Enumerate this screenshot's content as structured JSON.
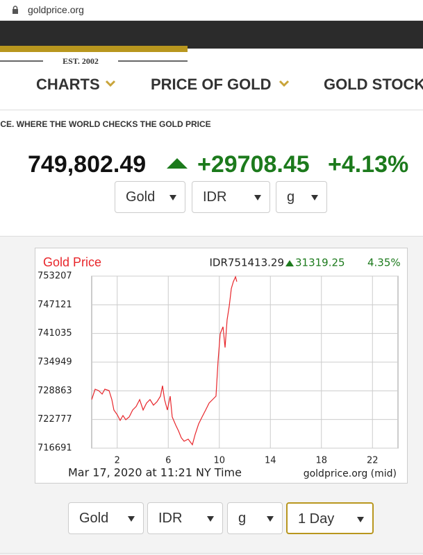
{
  "browser": {
    "url": "goldprice.org"
  },
  "logo": {
    "established": "EST. 2002"
  },
  "nav": [
    "CHARTS",
    "PRICE OF GOLD",
    "GOLD STOCK"
  ],
  "tagline": "ICE.  WHERE THE WORLD CHECKS THE GOLD PRICE",
  "ticker": {
    "price": "749,802.49",
    "change": "+29708.45",
    "change_pct": "+4.13%"
  },
  "top_selects": [
    "Gold",
    "IDR",
    "g"
  ],
  "bottom_selects": [
    "Gold",
    "IDR",
    "g",
    "1 Day"
  ],
  "chart_data": {
    "type": "line",
    "title": "Gold Price",
    "price": "IDR751413.29",
    "change": "31319.25",
    "change_pct": "4.35%",
    "unit": "g",
    "footer_left": "Mar 17, 2020 at 11:21 NY Time",
    "footer_right": "goldprice.org (mid)",
    "color": "#e8262b",
    "grid": true,
    "x": [
      0.0,
      0.27,
      0.54,
      0.82,
      1.03,
      1.36,
      1.58,
      1.74,
      2.01,
      2.23,
      2.45,
      2.67,
      2.94,
      3.21,
      3.48,
      3.76,
      4.03,
      4.3,
      4.57,
      4.84,
      5.12,
      5.39,
      5.55,
      5.71,
      5.93,
      6.15,
      6.31,
      6.59,
      6.8,
      7.02,
      7.24,
      7.56,
      7.89,
      8.11,
      8.38,
      8.65,
      8.93,
      9.2,
      9.47,
      9.74,
      9.9,
      10.07,
      10.29,
      10.45,
      10.61,
      10.78,
      10.94,
      11.1,
      11.27,
      11.37
    ],
    "values": [
      726998,
      729207,
      728912,
      728176,
      729207,
      728912,
      726998,
      724790,
      723759,
      722581,
      723612,
      722728,
      723317,
      724790,
      725526,
      726998,
      724790,
      726262,
      726998,
      725820,
      726557,
      727734,
      729943,
      726998,
      724790,
      727734,
      723317,
      721550,
      720372,
      718900,
      718164,
      718606,
      717428,
      719636,
      721845,
      723317,
      724790,
      726262,
      726998,
      727734,
      735096,
      740986,
      742458,
      738041,
      743931,
      746876,
      750557,
      752029,
      753060,
      752029
    ],
    "xlim": [
      0,
      24
    ],
    "xticks": [
      2,
      6,
      10,
      14,
      18,
      22
    ],
    "ylim": [
      716691,
      753207
    ],
    "yticks": [
      716691,
      722777,
      728863,
      734949,
      741035,
      747121,
      753207
    ]
  }
}
